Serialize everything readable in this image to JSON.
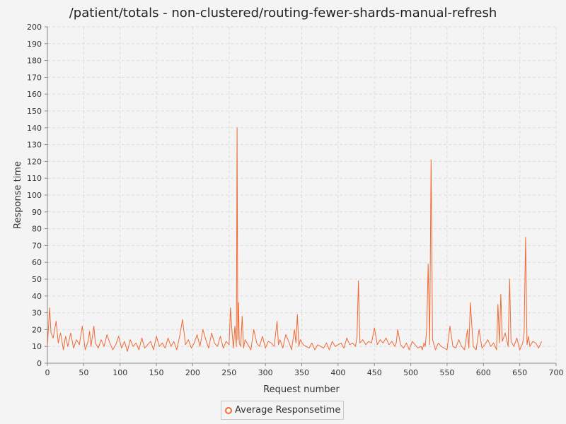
{
  "chart_data": {
    "type": "line",
    "title": "/patient/totals - non-clustered/routing-fewer-shards-manual-refresh",
    "xlabel": "Request number",
    "ylabel": "Response time",
    "xlim": [
      0,
      700
    ],
    "ylim": [
      0,
      200
    ],
    "x_ticks": [
      "0",
      "50",
      "100",
      "150",
      "200",
      "250",
      "300",
      "350",
      "400",
      "450",
      "500",
      "550",
      "600",
      "650",
      "700"
    ],
    "y_ticks": [
      "0",
      "10",
      "20",
      "30",
      "40",
      "50",
      "60",
      "70",
      "80",
      "90",
      "100",
      "110",
      "120",
      "130",
      "140",
      "150",
      "160",
      "170",
      "180",
      "190",
      "200"
    ],
    "grid": true,
    "legend_position": "bottom",
    "series": [
      {
        "name": "Average Responsetime",
        "color": "#f06a35",
        "x": [
          0,
          3,
          5,
          8,
          12,
          15,
          18,
          22,
          25,
          28,
          32,
          36,
          40,
          44,
          48,
          52,
          56,
          58,
          60,
          64,
          66,
          70,
          74,
          78,
          82,
          86,
          90,
          94,
          98,
          102,
          106,
          110,
          114,
          118,
          122,
          126,
          130,
          134,
          138,
          142,
          146,
          150,
          154,
          158,
          162,
          166,
          170,
          174,
          178,
          182,
          186,
          190,
          194,
          198,
          202,
          206,
          210,
          214,
          218,
          222,
          226,
          230,
          234,
          238,
          242,
          246,
          250,
          252,
          254,
          256,
          258,
          260,
          261,
          262,
          263,
          264,
          266,
          268,
          270,
          272,
          276,
          280,
          284,
          288,
          292,
          296,
          300,
          304,
          308,
          312,
          316,
          318,
          320,
          324,
          328,
          332,
          336,
          340,
          342,
          344,
          346,
          348,
          352,
          356,
          360,
          364,
          368,
          372,
          376,
          380,
          384,
          388,
          392,
          396,
          400,
          404,
          408,
          412,
          416,
          420,
          424,
          426,
          428,
          430,
          434,
          438,
          442,
          446,
          450,
          454,
          458,
          462,
          466,
          470,
          474,
          478,
          480,
          482,
          486,
          490,
          494,
          498,
          502,
          506,
          510,
          514,
          516,
          518,
          520,
          522,
          524,
          526,
          528,
          530,
          534,
          538,
          542,
          546,
          550,
          554,
          558,
          562,
          566,
          570,
          574,
          578,
          580,
          582,
          586,
          590,
          594,
          598,
          602,
          606,
          610,
          614,
          618,
          620,
          622,
          624,
          626,
          630,
          634,
          636,
          638,
          642,
          646,
          650,
          654,
          656,
          658,
          660,
          662,
          664,
          668,
          672,
          676,
          680
        ],
        "values": [
          10,
          33,
          18,
          15,
          25,
          12,
          18,
          8,
          16,
          10,
          18,
          9,
          14,
          11,
          22,
          8,
          13,
          19,
          10,
          22,
          12,
          9,
          14,
          10,
          17,
          12,
          8,
          11,
          16,
          9,
          13,
          7,
          14,
          10,
          12,
          8,
          15,
          9,
          11,
          13,
          8,
          16,
          10,
          12,
          9,
          15,
          10,
          13,
          8,
          16,
          26,
          11,
          14,
          9,
          12,
          17,
          10,
          20,
          14,
          9,
          18,
          12,
          10,
          16,
          9,
          13,
          11,
          33,
          19,
          9,
          22,
          10,
          140,
          14,
          36,
          12,
          10,
          28,
          9,
          14,
          11,
          8,
          20,
          12,
          10,
          16,
          9,
          13,
          12,
          10,
          25,
          11,
          14,
          9,
          17,
          13,
          8,
          20,
          12,
          29,
          10,
          14,
          11,
          10,
          9,
          12,
          8,
          11,
          10,
          9,
          12,
          8,
          13,
          10,
          11,
          12,
          9,
          15,
          11,
          12,
          10,
          16,
          49,
          12,
          14,
          11,
          13,
          12,
          21,
          11,
          14,
          12,
          15,
          11,
          13,
          10,
          12,
          20,
          11,
          9,
          12,
          8,
          13,
          11,
          9,
          10,
          8,
          12,
          10,
          21,
          59,
          11,
          121,
          14,
          8,
          12,
          10,
          9,
          8,
          22,
          10,
          9,
          14,
          10,
          8,
          20,
          9,
          36,
          10,
          8,
          20,
          9,
          11,
          14,
          10,
          12,
          8,
          35,
          12,
          41,
          13,
          18,
          10,
          50,
          13,
          10,
          15,
          8,
          12,
          18,
          75,
          11,
          16,
          10,
          13,
          12,
          9,
          13
        ]
      }
    ]
  },
  "legend": {
    "label": "Average Responsetime"
  }
}
